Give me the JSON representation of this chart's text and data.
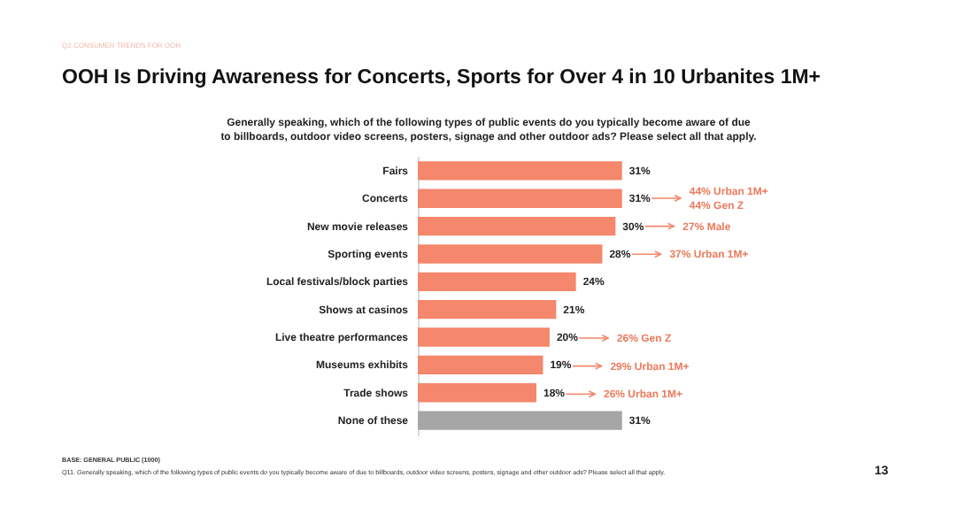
{
  "chart_data": {
    "type": "bar",
    "orientation": "horizontal",
    "title": "OOH Is Driving Awareness for Concerts, Sports for Over 4 in 10 Urbanites 1M+",
    "subtitle": "Generally speaking, which of the following types of public events do you typically become aware of due to billboards, outdoor video screens, posters, signage and other outdoor ads? Please select all that apply.",
    "categories": [
      "Fairs",
      "Concerts",
      "New movie releases",
      "Sporting events",
      "Local festivals/block parties",
      "Shows at casinos",
      "Live theatre performances",
      "Museums exhibits",
      "Trade shows",
      "None of these"
    ],
    "values": [
      31,
      31,
      30,
      28,
      24,
      21,
      20,
      19,
      18,
      31
    ],
    "value_labels": [
      "31%",
      "31%",
      "30%",
      "28%",
      "24%",
      "21%",
      "20%",
      "19%",
      "18%",
      "31%"
    ],
    "colors": [
      "#f4876c",
      "#f4876c",
      "#f4876c",
      "#f4876c",
      "#f4876c",
      "#f4876c",
      "#f4876c",
      "#f4876c",
      "#f4876c",
      "#a6a6a6"
    ],
    "annotations": [
      "44% Urban 1M+",
      "44% Gen Z",
      "27% Male",
      "37% Urban 1M+",
      "26% Gen Z",
      "29% Urban 1M+",
      "26% Urban 1M+",
      "Q2 CONSUMER TRENDS FOR OOH",
      "BASE: GENERAL PUBLIC (1000)",
      "Q11. Generally speaking, which of the following types of public events do you typically become aware of due to billboards, outdoor video screens, posters, signage and other outdoor ads? Please select all that apply.",
      "13"
    ],
    "grid": false
  }
}
